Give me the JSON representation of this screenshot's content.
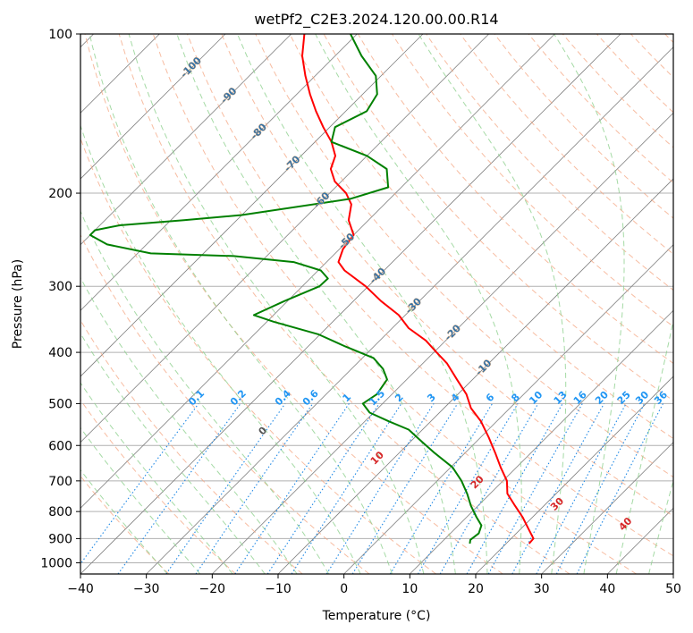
{
  "chart_data": {
    "type": "line",
    "title": "wetPf2_C2E3.2024.120.00.00.R14",
    "xlabel": "Temperature (°C)",
    "ylabel": "Pressure (hPa)",
    "xlim": [
      -40,
      50
    ],
    "ylim": [
      1050,
      100
    ],
    "y_scale": "log",
    "grid": true,
    "x_ticks": [
      "−40",
      "−30",
      "−20",
      "−10",
      "0",
      "10",
      "20",
      "30",
      "40",
      "50"
    ],
    "x_tick_values": [
      -40,
      -30,
      -20,
      -10,
      0,
      10,
      20,
      30,
      40,
      50
    ],
    "y_ticks": [
      "100",
      "200",
      "300",
      "400",
      "500",
      "600",
      "700",
      "800",
      "900",
      "1000"
    ],
    "y_tick_values": [
      100,
      200,
      300,
      400,
      500,
      600,
      700,
      800,
      900,
      1000
    ],
    "skew_degrees": 45,
    "series": [
      {
        "color": "#ff0000",
        "pressure": [
          920,
          900,
          860,
          820,
          780,
          740,
          700,
          660,
          620,
          580,
          540,
          510,
          480,
          450,
          420,
          400,
          380,
          360,
          340,
          320,
          300,
          280,
          270,
          255,
          240,
          225,
          210,
          200,
          190,
          180,
          170,
          160,
          150,
          140,
          130,
          120,
          110,
          100
        ],
        "temperature": [
          23.5,
          23.4,
          21.0,
          18.5,
          15.6,
          12.6,
          10.6,
          7.6,
          4.6,
          1.3,
          -2.4,
          -5.9,
          -8.7,
          -12.4,
          -16.3,
          -19.6,
          -23.0,
          -27.5,
          -31.0,
          -35.8,
          -40.4,
          -46.0,
          -48.2,
          -49.5,
          -50.0,
          -53.0,
          -55.0,
          -57.5,
          -61.0,
          -63.5,
          -64.8,
          -67.5,
          -71.0,
          -74.5,
          -78.0,
          -81.5,
          -85.0,
          -88.0
        ]
      },
      {
        "color": "#008000",
        "pressure": [
          920,
          905,
          880,
          850,
          820,
          780,
          740,
          700,
          660,
          620,
          590,
          560,
          540,
          520,
          500,
          480,
          450,
          430,
          410,
          390,
          370,
          350,
          340,
          320,
          300,
          290,
          280,
          270,
          263,
          260,
          250,
          240,
          235,
          230,
          225,
          220,
          205,
          195,
          180,
          170,
          160,
          150,
          140,
          130,
          120,
          110,
          100
        ],
        "temperature": [
          14.5,
          14.0,
          14.3,
          13.5,
          11.5,
          8.9,
          6.5,
          3.7,
          0.3,
          -4.6,
          -8.3,
          -12.1,
          -16.4,
          -20.6,
          -23.0,
          -22.3,
          -23.0,
          -25.2,
          -28.3,
          -34.3,
          -40.2,
          -49.0,
          -53.0,
          -50.5,
          -47.4,
          -47.3,
          -49.6,
          -55.0,
          -65.0,
          -78.0,
          -86.0,
          -90.0,
          -90.0,
          -87.0,
          -78.0,
          -70.0,
          -56.0,
          -52.0,
          -55.0,
          -60.0,
          -67.5,
          -69.2,
          -66.8,
          -67.8,
          -70.8,
          -76.0,
          -81.0
        ]
      }
    ],
    "dry_adiabat_labels": [
      "-100",
      "-90",
      "-80",
      "-70",
      "-60",
      "-50",
      "-40",
      "-30",
      "-20",
      "-10"
    ],
    "mixing_ratio_labels": [
      "0.1",
      "0.2",
      "0.4",
      "0.6",
      "1",
      "1.5",
      "2",
      "3",
      "4",
      "6",
      "8",
      "10",
      "13",
      "16",
      "20",
      "25",
      "30",
      "36"
    ],
    "mixing_ratio_values": [
      0.1,
      0.2,
      0.4,
      0.6,
      1,
      1.5,
      2,
      3,
      4,
      6,
      8,
      10,
      13,
      16,
      20,
      25,
      30,
      36
    ],
    "moist_adiabat_labels": [
      "0",
      "10",
      "20",
      "30",
      "40"
    ],
    "colors": {
      "temperature": "#ff0000",
      "dewpoint": "#008000",
      "dry_adiabat": "#f4a582",
      "moist_adiabat": "#8fd18f",
      "mixing_ratio": "#1e88e5",
      "isotherm": "#808080",
      "isobar": "#b0b0b0",
      "dry_label": "#1f6fb4",
      "mixing_label": "#2196f3",
      "moist_label": "#d62728",
      "moist_zero_label": "#555555",
      "dry_label_outline": "#c8a07a"
    }
  }
}
